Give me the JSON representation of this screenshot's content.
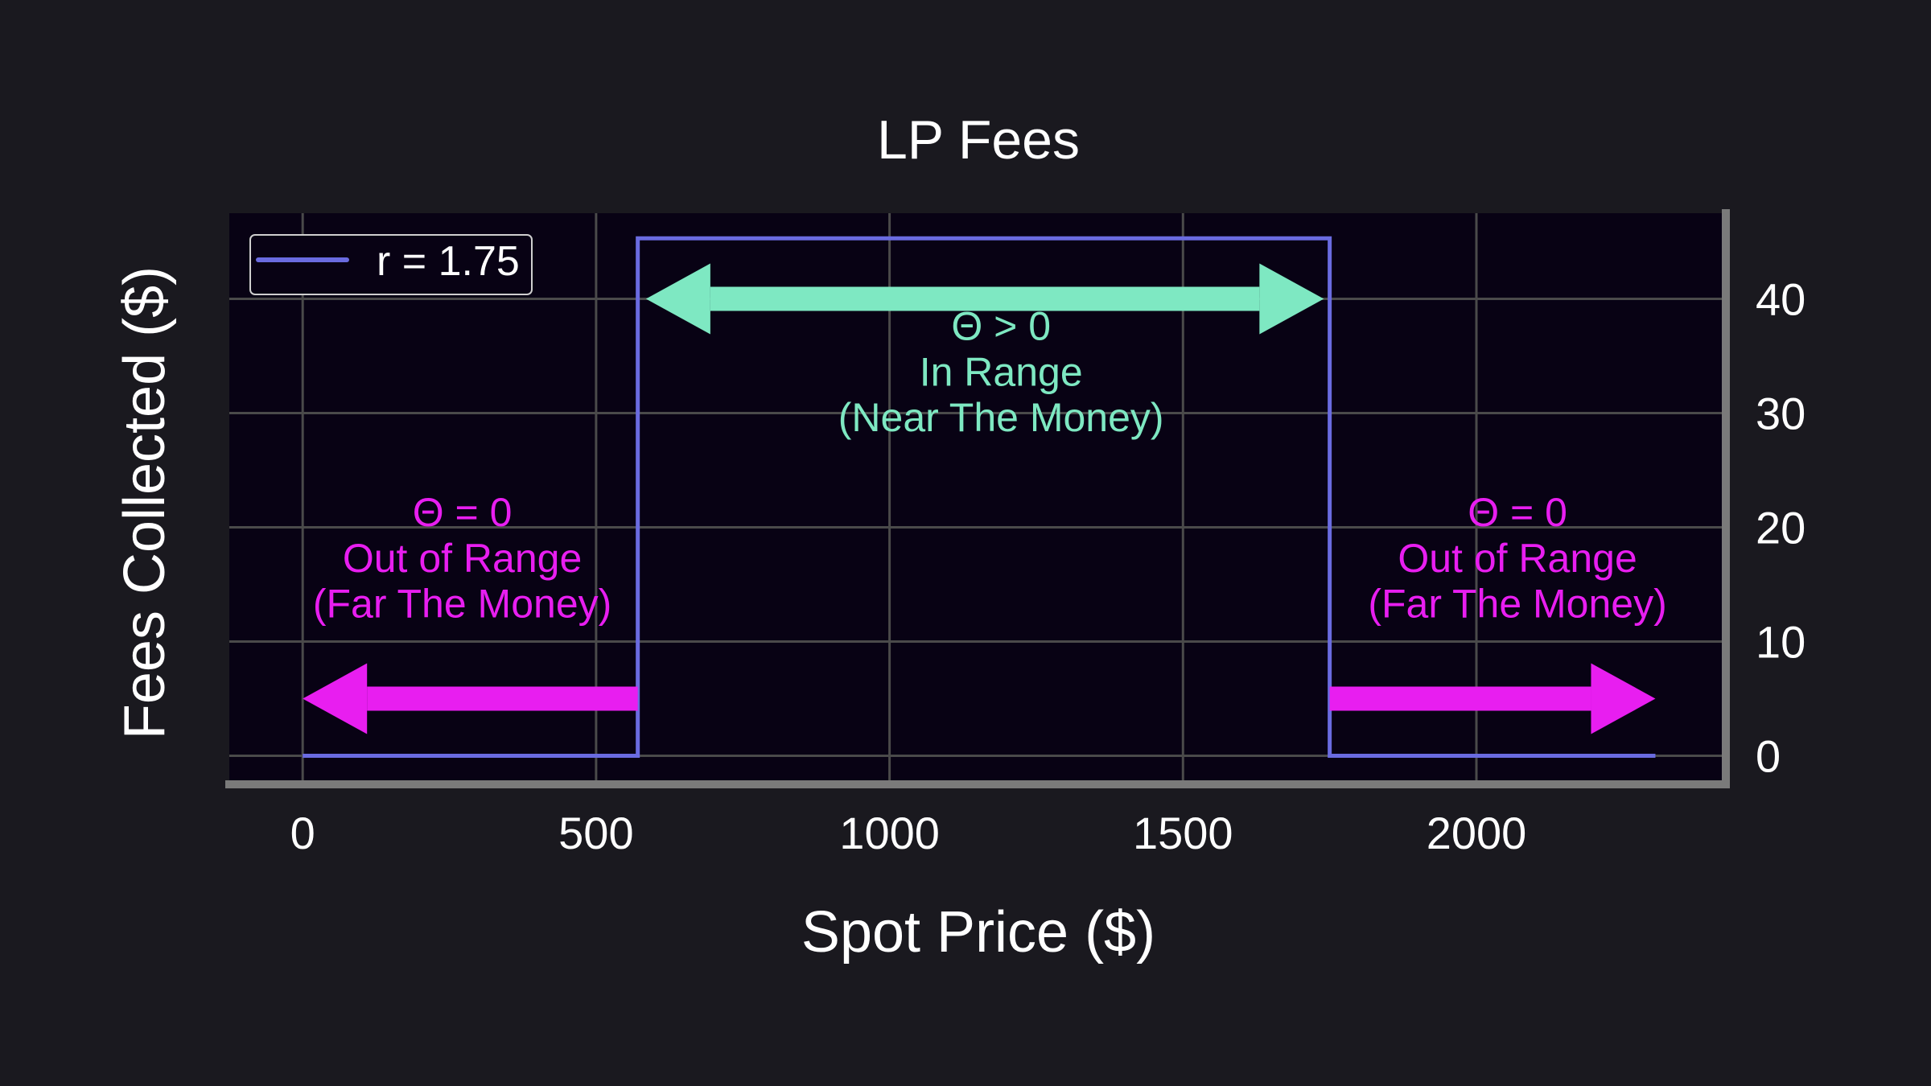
{
  "chart_data": {
    "type": "line",
    "title": "LP Fees",
    "xlabel": "Spot Price ($)",
    "ylabel": "Fees Collected ($)",
    "xlim": [
      -125,
      2425
    ],
    "ylim": [
      -2.5,
      47.5
    ],
    "x_ticks": [
      0,
      500,
      1000,
      1500,
      2000
    ],
    "y_ticks": [
      0,
      10,
      20,
      30,
      40
    ],
    "y_axis_side": "right",
    "grid": true,
    "legend": {
      "placement": "top-left"
    },
    "series": [
      {
        "name": "r = 1.75",
        "color": "#6a6be0",
        "x": [
          0,
          571,
          571,
          1750,
          1750,
          2305
        ],
        "y": [
          0,
          0,
          45.3,
          45.3,
          0,
          0
        ]
      }
    ],
    "annotations": [
      {
        "kind": "text",
        "color": "#7ee8c2",
        "x": 1190,
        "y": [
          36.4,
          32.4,
          28.4
        ],
        "lines": [
          "Θ > 0",
          "In Range",
          "(Near The Money)"
        ]
      },
      {
        "kind": "text",
        "color": "#e81ef0",
        "x": 272,
        "y": [
          20.1,
          16.1,
          12.1
        ],
        "lines": [
          "Θ = 0",
          "Out of Range",
          "(Far The Money)"
        ]
      },
      {
        "kind": "text",
        "color": "#e81ef0",
        "x": 2070,
        "y": [
          20.1,
          16.1,
          12.1
        ],
        "lines": [
          "Θ = 0",
          "Out of Range",
          "(Far The Money)"
        ]
      },
      {
        "kind": "arrow",
        "direction": "both",
        "color": "#7ee8c2",
        "x": [
          585,
          1740
        ],
        "y": 40
      },
      {
        "kind": "arrow",
        "direction": "left",
        "color": "#e81ef0",
        "x": [
          571,
          0
        ],
        "y": 5
      },
      {
        "kind": "arrow",
        "direction": "right",
        "color": "#e81ef0",
        "x": [
          1750,
          2305
        ],
        "y": 5
      }
    ]
  },
  "colors": {
    "page_background": "#1a191f",
    "plot_background": "#080214",
    "grid": "#4a4a4a",
    "axis_spine": "#7a7a7a",
    "text": "#ffffff"
  }
}
